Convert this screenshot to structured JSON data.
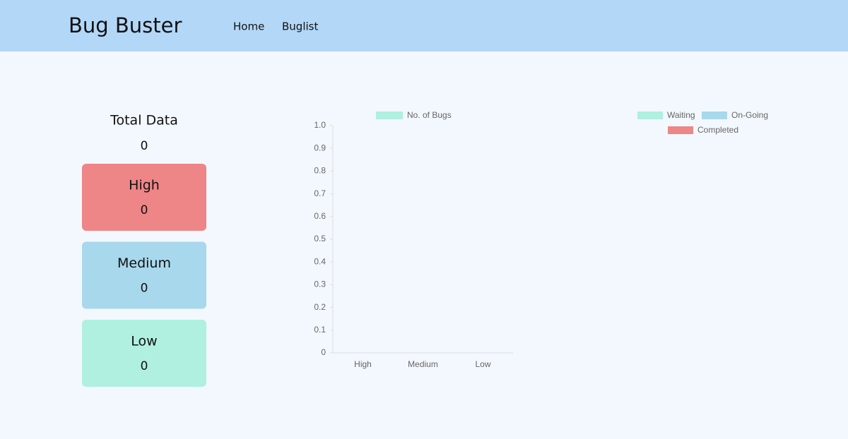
{
  "header": {
    "title": "Bug Buster",
    "nav": [
      "Home",
      "Buglist"
    ]
  },
  "summary": {
    "title": "Total Data",
    "total": 0,
    "cards": [
      {
        "label": "High",
        "value": 0,
        "color": "#ee8587"
      },
      {
        "label": "Medium",
        "value": 0,
        "color": "#a8d8ec"
      },
      {
        "label": "Low",
        "value": 0,
        "color": "#aff0e0"
      }
    ]
  },
  "chart_data": [
    {
      "type": "bar",
      "categories": [
        "High",
        "Medium",
        "Low"
      ],
      "series": [
        {
          "name": "No. of Bugs",
          "color": "#aff0e0",
          "values": [
            0,
            0,
            0
          ]
        }
      ],
      "ylim": [
        0,
        1
      ],
      "yticks": [
        0,
        0.1,
        0.2,
        0.3,
        0.4,
        0.5,
        0.6,
        0.7,
        0.8,
        0.9,
        {
          "value": 1,
          "label": "1.0"
        }
      ]
    },
    {
      "type": "pie",
      "categories": [
        "Waiting",
        "On-Going",
        "Completed"
      ],
      "values": [
        0,
        0,
        0
      ],
      "colors": [
        "#aff0e0",
        "#a8d8ec",
        "#ee8587"
      ]
    }
  ]
}
